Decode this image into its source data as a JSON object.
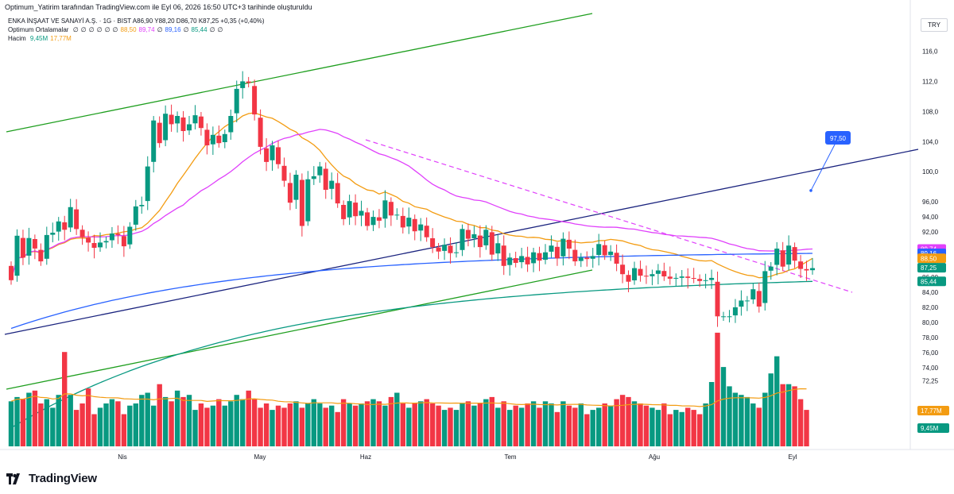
{
  "header": {
    "created_by": "Optimum_Yatirim tarafından TradingView.com ile Eyl 06, 2026 16:50 UTC+3 tarihinde oluşturuldu",
    "symbol_line": "ENKA İNŞAAT VE SANAYİ A.Ş. · 1G · BIST  A86,90  Y88,20  D86,70  K87,25  +0,35 (+0,40%)",
    "currency": "TRY"
  },
  "legend": {
    "ma_label": "Optimum Ortalamalar",
    "ma_values": [
      "∅",
      "∅",
      "∅",
      "∅",
      "∅",
      "∅",
      "88,50",
      "89,74",
      "∅",
      "89,16",
      "∅",
      "85,44",
      "∅",
      "∅"
    ],
    "ma_colors": [
      "#131722",
      "#131722",
      "#131722",
      "#131722",
      "#131722",
      "#131722",
      "#f39c12",
      "#e040fb",
      "#131722",
      "#2962ff",
      "#131722",
      "#089981",
      "#131722",
      "#131722"
    ],
    "volume_label": "Hacim",
    "volume_values": [
      "9,45M",
      "17,77M"
    ],
    "volume_colors": [
      "#089981",
      "#f39c12"
    ]
  },
  "footer": {
    "brand": "TradingView"
  },
  "colors": {
    "up": "#089981",
    "down": "#f23645",
    "ma_orange": "#f39c12",
    "ma_magenta": "#e040fb",
    "ma_blue": "#2962ff",
    "ma_green": "#089981",
    "channel": "#1e9e1e",
    "trend": "#1a237e",
    "dashed": "#e040fb",
    "price_target": "#2962ff"
  },
  "chart_data": {
    "type": "candlestick",
    "title": "ENKA İNŞAAT VE SANAYİ A.Ş. · 1G · BIST",
    "x_labels": [
      "Nis",
      "May",
      "Haz",
      "Tem",
      "Ağu",
      "Eyl"
    ],
    "y_ticks": [
      "116,0",
      "112,0",
      "108,0",
      "104,0",
      "100,0",
      "96,00",
      "94,00",
      "92,00",
      "90,00",
      "88,00",
      "86,00",
      "84,00",
      "82,00",
      "80,00",
      "78,00",
      "76,00",
      "74,00",
      "72,25"
    ],
    "ylim": [
      70.5,
      117
    ],
    "last": {
      "open": 86.9,
      "high": 88.2,
      "low": 86.7,
      "close": 87.25,
      "change": "+0,35 (+0,40%)"
    },
    "price_labels": [
      {
        "text": "89,74",
        "value": 89.74,
        "color": "#e040fb"
      },
      {
        "text": "89,16",
        "value": 89.16,
        "color": "#2962ff"
      },
      {
        "text": "88,50",
        "value": 88.5,
        "color": "#f39c12"
      },
      {
        "text": "87,25",
        "value": 87.25,
        "color": "#089981"
      },
      {
        "text": "85,44",
        "value": 85.44,
        "color": "#089981"
      }
    ],
    "volume_labels": [
      {
        "text": "17,77M",
        "color": "#f39c12"
      },
      {
        "text": "9,45M",
        "color": "#089981"
      }
    ],
    "target_label": {
      "text": "97,50",
      "value": 97.5
    },
    "closes": [
      85.6,
      91.5,
      88.6,
      91.2,
      89.8,
      88.1,
      91.6,
      91.9,
      93.4,
      92.3,
      95.3,
      92.4,
      91.3,
      90.6,
      89.9,
      90.6,
      90.8,
      91.8,
      91.6,
      90.1,
      92.7,
      95.4,
      95.6,
      100.7,
      106.8,
      103.8,
      107.7,
      106.3,
      107.4,
      105.4,
      106.3,
      107.5,
      105.8,
      103.5,
      104.9,
      103.8,
      105.0,
      107.4,
      111.0,
      112.0,
      111.8,
      107.6,
      103.3,
      101.3,
      103.5,
      101.0,
      98.8,
      95.9,
      99.6,
      92.8,
      99.0,
      99.4,
      100.7,
      97.6,
      98.8,
      95.8,
      93.7,
      96.1,
      94.1,
      94.8,
      92.8,
      94.0,
      93.5,
      96.2,
      94.2,
      94.3,
      92.6,
      93.9,
      92.1,
      93.0,
      91.3,
      90.0,
      89.4,
      90.3,
      89.2,
      89.3,
      92.4,
      91.1,
      91.7,
      90.0,
      92.3,
      89.0,
      90.5,
      87.5,
      88.6,
      87.9,
      88.8,
      87.7,
      89.3,
      88.2,
      89.3,
      90.2,
      88.5,
      91.1,
      89.8,
      88.1,
      88.6,
      88.4,
      88.8,
      90.4,
      88.9,
      89.4,
      87.8,
      86.4,
      85.4,
      87.2,
      86.2,
      86.1,
      86.4,
      86.9,
      86.1,
      85.8,
      85.9,
      86.1,
      85.9,
      85.8,
      85.5,
      85.6,
      85.9,
      80.8,
      80.8,
      80.8,
      82.0,
      82.9,
      82.9,
      84.4,
      82.1,
      86.8,
      87.4,
      89.8,
      87.4,
      90.2,
      88.2,
      87.1,
      86.9,
      87.2
    ],
    "volumes": [
      0.42,
      0.46,
      0.44,
      0.5,
      0.52,
      0.4,
      0.44,
      0.36,
      0.48,
      0.88,
      0.48,
      0.34,
      0.4,
      0.54,
      0.3,
      0.36,
      0.4,
      0.44,
      0.42,
      0.3,
      0.38,
      0.4,
      0.48,
      0.5,
      0.38,
      0.58,
      0.46,
      0.42,
      0.52,
      0.46,
      0.48,
      0.34,
      0.4,
      0.36,
      0.38,
      0.44,
      0.38,
      0.42,
      0.48,
      0.44,
      0.52,
      0.44,
      0.36,
      0.4,
      0.34,
      0.38,
      0.36,
      0.4,
      0.42,
      0.36,
      0.4,
      0.44,
      0.4,
      0.36,
      0.38,
      0.32,
      0.44,
      0.4,
      0.38,
      0.4,
      0.42,
      0.44,
      0.42,
      0.38,
      0.46,
      0.5,
      0.4,
      0.36,
      0.4,
      0.42,
      0.44,
      0.4,
      0.38,
      0.34,
      0.36,
      0.34,
      0.4,
      0.42,
      0.38,
      0.4,
      0.44,
      0.46,
      0.36,
      0.42,
      0.34,
      0.38,
      0.36,
      0.4,
      0.42,
      0.36,
      0.42,
      0.4,
      0.32,
      0.42,
      0.38,
      0.36,
      0.4,
      0.3,
      0.34,
      0.36,
      0.4,
      0.38,
      0.44,
      0.48,
      0.46,
      0.42,
      0.4,
      0.38,
      0.36,
      0.34,
      0.4,
      0.3,
      0.34,
      0.32,
      0.36,
      0.34,
      0.3,
      0.4,
      0.6,
      1.06,
      0.74,
      0.56,
      0.5,
      0.48,
      0.46,
      0.4,
      0.36,
      0.5,
      0.68,
      0.84,
      0.58,
      0.58,
      0.56,
      0.44,
      0.34
    ]
  }
}
